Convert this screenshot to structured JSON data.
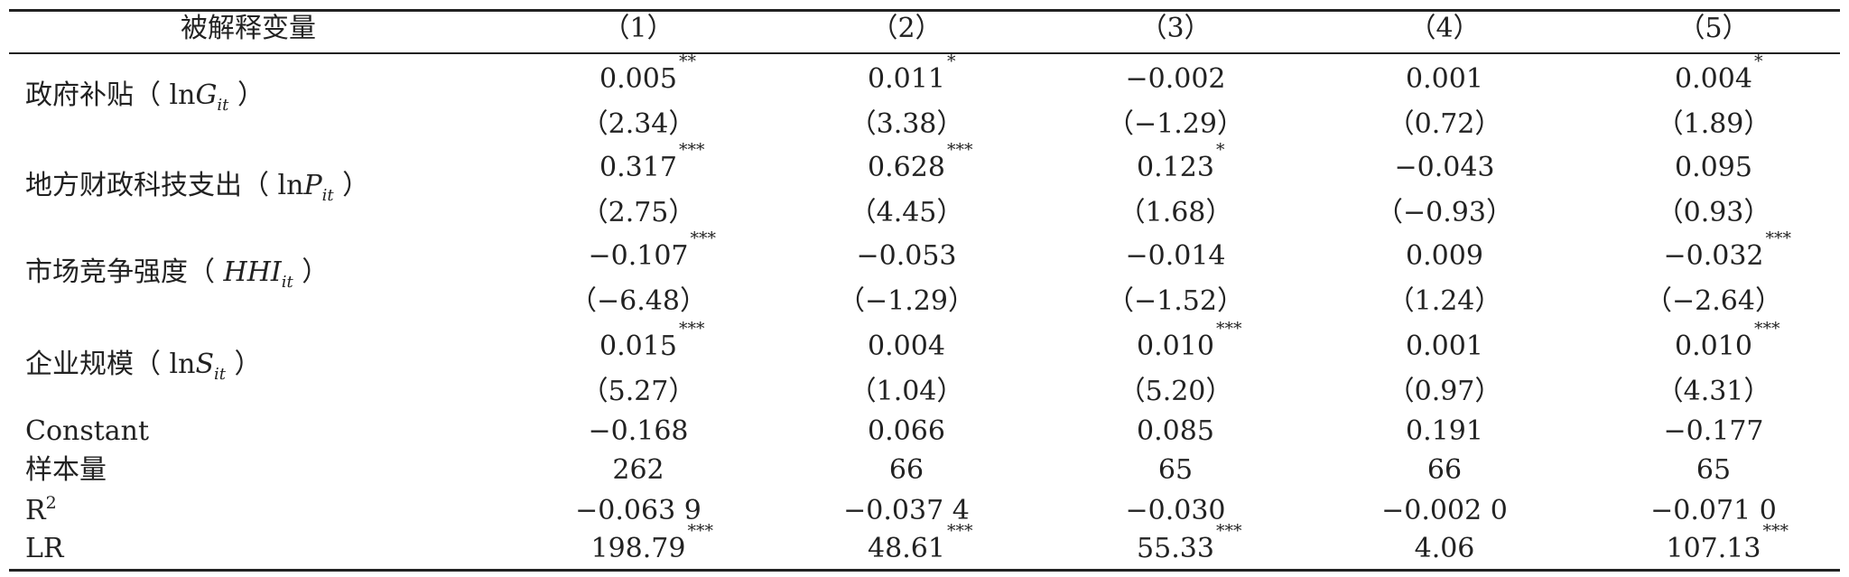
{
  "header": {
    "label": "被解释变量",
    "columns": [
      "（1）",
      "（2）",
      "（3）",
      "（4）",
      "（5）"
    ]
  },
  "rows": [
    {
      "label_prefix": "政府补贴（ ln",
      "label_var": "G",
      "label_sub": "it",
      "label_suffix": " ）",
      "coef": [
        "0.005",
        "0.011",
        "−0.002",
        "0.001",
        "0.004"
      ],
      "stars": [
        "**",
        "*",
        "",
        "",
        "*"
      ],
      "t": [
        "（2.34）",
        "（3.38）",
        "（−1.29）",
        "（0.72）",
        "（1.89）"
      ]
    },
    {
      "label_prefix": "地方财政科技支出（ ln",
      "label_var": "P",
      "label_sub": "it",
      "label_suffix": " ）",
      "coef": [
        "0.317",
        "0.628",
        "0.123",
        "−0.043",
        "0.095"
      ],
      "stars": [
        "***",
        "***",
        "*",
        "",
        ""
      ],
      "t": [
        "（2.75）",
        "（4.45）",
        "（1.68）",
        "（−0.93）",
        "（0.93）"
      ]
    },
    {
      "label_prefix": "市场竞争强度（ ",
      "label_var": "HHI",
      "label_sub": "it",
      "label_suffix": " ）",
      "coef": [
        "−0.107",
        "−0.053",
        "−0.014",
        "0.009",
        "−0.032"
      ],
      "stars": [
        "***",
        "",
        "",
        "",
        "***"
      ],
      "t": [
        "（−6.48）",
        "（−1.29）",
        "（−1.52）",
        "（1.24）",
        "（−2.64）"
      ]
    },
    {
      "label_prefix": "企业规模（ ln",
      "label_var": "S",
      "label_sub": "it",
      "label_suffix": " ）",
      "coef": [
        "0.015",
        "0.004",
        "0.010",
        "0.001",
        "0.010"
      ],
      "stars": [
        "***",
        "",
        "***",
        "",
        "***"
      ],
      "t": [
        "（5.27）",
        "（1.04）",
        "（5.20）",
        "（0.97）",
        "（4.31）"
      ]
    }
  ],
  "constant": {
    "label": "Constant",
    "values": [
      "−0.168",
      "0.066",
      "0.085",
      "0.191",
      "−0.177"
    ]
  },
  "sample": {
    "label": "样本量",
    "values": [
      "262",
      "66",
      "65",
      "66",
      "65"
    ]
  },
  "r2": {
    "label_base": "R",
    "label_sup": "2",
    "values": [
      "−0.063 9",
      "−0.037 4",
      "−0.030",
      "−0.002 0",
      "−0.071 0"
    ]
  },
  "lr": {
    "label": "LR",
    "values": [
      "198.79",
      "48.61",
      "55.33",
      "4.06",
      "107.13"
    ],
    "stars": [
      "***",
      "***",
      "***",
      "",
      "***"
    ]
  }
}
